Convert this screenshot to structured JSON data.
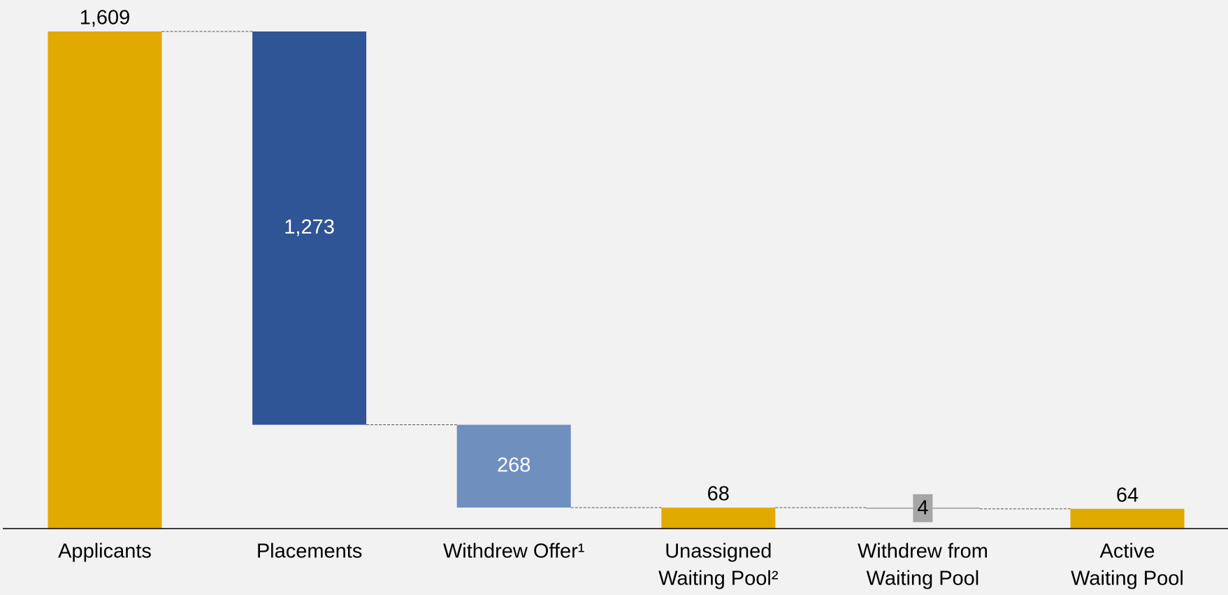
{
  "chart_data": {
    "type": "waterfall",
    "categories": [
      [
        "Applicants"
      ],
      [
        "Placements"
      ],
      [
        "Withdrew Offer¹"
      ],
      [
        "Unassigned",
        "Waiting Pool²"
      ],
      [
        "Withdrew from",
        "Waiting Pool"
      ],
      [
        "Active",
        "Waiting Pool"
      ]
    ],
    "values": [
      1609,
      1273,
      268,
      68,
      4,
      64
    ],
    "value_labels": [
      "1,609",
      "1,273",
      "268",
      "68",
      "4",
      "64"
    ],
    "measures": [
      "total",
      "decrease",
      "decrease",
      "total",
      "decrease",
      "total"
    ],
    "colors": [
      "#e0aa00",
      "#2f5597",
      "#6f8fbe",
      "#e0aa00",
      "#a6a6a6",
      "#e0aa00"
    ]
  }
}
